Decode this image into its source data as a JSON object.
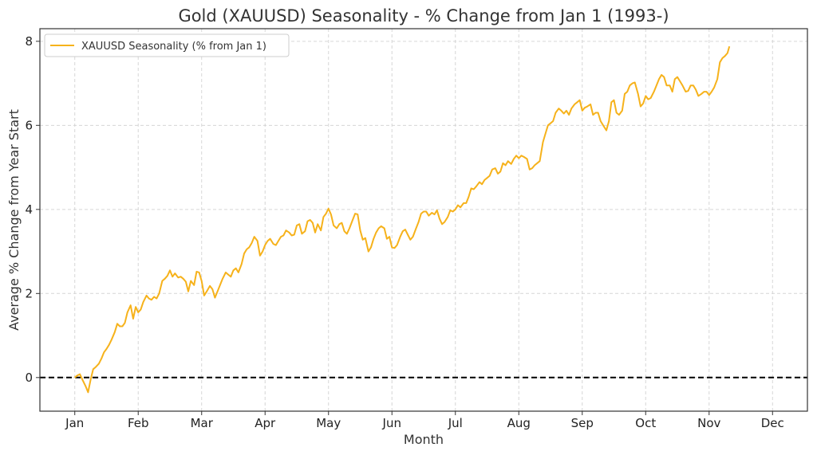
{
  "chart_data": {
    "type": "line",
    "title": "Gold (XAUUSD) Seasonality - % Change from Jan 1 (1993-)",
    "xlabel": "Month",
    "ylabel": "Average % Change from Year Start",
    "x_ticks": [
      "Jan",
      "Feb",
      "Mar",
      "Apr",
      "May",
      "Jun",
      "Jul",
      "Aug",
      "Sep",
      "Oct",
      "Nov",
      "Dec"
    ],
    "xlim": [
      -0.55,
      11.55
    ],
    "ylim": [
      -0.8,
      8.3
    ],
    "y_ticks": [
      0,
      2,
      4,
      6,
      8
    ],
    "grid": true,
    "legend": "top-left",
    "reference_line": {
      "y": 0,
      "style": "dashed",
      "color": "#000000"
    },
    "series": [
      {
        "name": "XAUUSD Seasonality (% from Jan 1)",
        "color": "#F6B21B",
        "points": [
          [
            0.0,
            0.0
          ],
          [
            0.04,
            0.05
          ],
          [
            0.08,
            0.08
          ],
          [
            0.12,
            -0.05
          ],
          [
            0.17,
            -0.2
          ],
          [
            0.21,
            -0.35
          ],
          [
            0.25,
            -0.05
          ],
          [
            0.29,
            0.2
          ],
          [
            0.33,
            0.25
          ],
          [
            0.38,
            0.33
          ],
          [
            0.42,
            0.45
          ],
          [
            0.46,
            0.6
          ],
          [
            0.5,
            0.68
          ],
          [
            0.54,
            0.78
          ],
          [
            0.58,
            0.9
          ],
          [
            0.63,
            1.08
          ],
          [
            0.67,
            1.28
          ],
          [
            0.71,
            1.22
          ],
          [
            0.75,
            1.22
          ],
          [
            0.79,
            1.3
          ],
          [
            0.83,
            1.55
          ],
          [
            0.88,
            1.72
          ],
          [
            0.92,
            1.4
          ],
          [
            0.96,
            1.68
          ],
          [
            1.0,
            1.55
          ],
          [
            1.04,
            1.62
          ],
          [
            1.08,
            1.8
          ],
          [
            1.13,
            1.95
          ],
          [
            1.17,
            1.88
          ],
          [
            1.21,
            1.85
          ],
          [
            1.25,
            1.92
          ],
          [
            1.29,
            1.88
          ],
          [
            1.33,
            2.0
          ],
          [
            1.38,
            2.3
          ],
          [
            1.42,
            2.35
          ],
          [
            1.46,
            2.42
          ],
          [
            1.5,
            2.55
          ],
          [
            1.54,
            2.4
          ],
          [
            1.58,
            2.48
          ],
          [
            1.63,
            2.38
          ],
          [
            1.67,
            2.4
          ],
          [
            1.71,
            2.35
          ],
          [
            1.75,
            2.28
          ],
          [
            1.79,
            2.05
          ],
          [
            1.83,
            2.3
          ],
          [
            1.88,
            2.2
          ],
          [
            1.92,
            2.52
          ],
          [
            1.96,
            2.5
          ],
          [
            2.0,
            2.3
          ],
          [
            2.04,
            1.95
          ],
          [
            2.08,
            2.05
          ],
          [
            2.13,
            2.18
          ],
          [
            2.17,
            2.1
          ],
          [
            2.21,
            1.9
          ],
          [
            2.25,
            2.05
          ],
          [
            2.29,
            2.2
          ],
          [
            2.33,
            2.35
          ],
          [
            2.38,
            2.5
          ],
          [
            2.42,
            2.45
          ],
          [
            2.46,
            2.4
          ],
          [
            2.5,
            2.55
          ],
          [
            2.54,
            2.6
          ],
          [
            2.58,
            2.5
          ],
          [
            2.63,
            2.7
          ],
          [
            2.67,
            2.95
          ],
          [
            2.71,
            3.05
          ],
          [
            2.75,
            3.1
          ],
          [
            2.79,
            3.2
          ],
          [
            2.83,
            3.35
          ],
          [
            2.88,
            3.25
          ],
          [
            2.92,
            2.9
          ],
          [
            2.96,
            3.0
          ],
          [
            3.0,
            3.15
          ],
          [
            3.04,
            3.25
          ],
          [
            3.08,
            3.3
          ],
          [
            3.13,
            3.18
          ],
          [
            3.17,
            3.15
          ],
          [
            3.21,
            3.25
          ],
          [
            3.25,
            3.35
          ],
          [
            3.29,
            3.38
          ],
          [
            3.33,
            3.5
          ],
          [
            3.38,
            3.45
          ],
          [
            3.42,
            3.38
          ],
          [
            3.46,
            3.4
          ],
          [
            3.5,
            3.62
          ],
          [
            3.54,
            3.65
          ],
          [
            3.58,
            3.42
          ],
          [
            3.63,
            3.48
          ],
          [
            3.67,
            3.72
          ],
          [
            3.71,
            3.75
          ],
          [
            3.75,
            3.68
          ],
          [
            3.79,
            3.45
          ],
          [
            3.83,
            3.65
          ],
          [
            3.88,
            3.5
          ],
          [
            3.92,
            3.82
          ],
          [
            3.96,
            3.9
          ],
          [
            4.0,
            4.02
          ],
          [
            4.04,
            3.88
          ],
          [
            4.08,
            3.62
          ],
          [
            4.13,
            3.55
          ],
          [
            4.17,
            3.65
          ],
          [
            4.21,
            3.68
          ],
          [
            4.25,
            3.48
          ],
          [
            4.29,
            3.42
          ],
          [
            4.33,
            3.55
          ],
          [
            4.38,
            3.75
          ],
          [
            4.42,
            3.9
          ],
          [
            4.46,
            3.88
          ],
          [
            4.5,
            3.5
          ],
          [
            4.54,
            3.28
          ],
          [
            4.58,
            3.32
          ],
          [
            4.63,
            3.0
          ],
          [
            4.67,
            3.1
          ],
          [
            4.71,
            3.3
          ],
          [
            4.75,
            3.45
          ],
          [
            4.79,
            3.55
          ],
          [
            4.83,
            3.6
          ],
          [
            4.88,
            3.55
          ],
          [
            4.92,
            3.3
          ],
          [
            4.96,
            3.35
          ],
          [
            5.0,
            3.1
          ],
          [
            5.04,
            3.08
          ],
          [
            5.08,
            3.15
          ],
          [
            5.13,
            3.35
          ],
          [
            5.17,
            3.48
          ],
          [
            5.21,
            3.52
          ],
          [
            5.25,
            3.4
          ],
          [
            5.29,
            3.28
          ],
          [
            5.33,
            3.35
          ],
          [
            5.38,
            3.55
          ],
          [
            5.42,
            3.7
          ],
          [
            5.46,
            3.9
          ],
          [
            5.5,
            3.95
          ],
          [
            5.54,
            3.95
          ],
          [
            5.58,
            3.85
          ],
          [
            5.63,
            3.92
          ],
          [
            5.67,
            3.88
          ],
          [
            5.71,
            3.98
          ],
          [
            5.75,
            3.78
          ],
          [
            5.79,
            3.65
          ],
          [
            5.83,
            3.7
          ],
          [
            5.88,
            3.82
          ],
          [
            5.92,
            3.98
          ],
          [
            5.96,
            3.95
          ],
          [
            6.0,
            4.0
          ],
          [
            6.04,
            4.1
          ],
          [
            6.08,
            4.05
          ],
          [
            6.13,
            4.15
          ],
          [
            6.17,
            4.15
          ],
          [
            6.21,
            4.3
          ],
          [
            6.25,
            4.5
          ],
          [
            6.29,
            4.48
          ],
          [
            6.33,
            4.55
          ],
          [
            6.38,
            4.65
          ],
          [
            6.42,
            4.6
          ],
          [
            6.46,
            4.7
          ],
          [
            6.5,
            4.75
          ],
          [
            6.54,
            4.8
          ],
          [
            6.58,
            4.95
          ],
          [
            6.63,
            4.98
          ],
          [
            6.67,
            4.85
          ],
          [
            6.71,
            4.9
          ],
          [
            6.75,
            5.1
          ],
          [
            6.79,
            5.05
          ],
          [
            6.83,
            5.15
          ],
          [
            6.88,
            5.08
          ],
          [
            6.92,
            5.2
          ],
          [
            6.96,
            5.28
          ],
          [
            7.0,
            5.22
          ],
          [
            7.04,
            5.28
          ],
          [
            7.08,
            5.25
          ],
          [
            7.13,
            5.2
          ],
          [
            7.17,
            4.95
          ],
          [
            7.21,
            4.98
          ],
          [
            7.25,
            5.05
          ],
          [
            7.29,
            5.1
          ],
          [
            7.33,
            5.15
          ],
          [
            7.38,
            5.6
          ],
          [
            7.42,
            5.8
          ],
          [
            7.46,
            6.0
          ],
          [
            7.5,
            6.05
          ],
          [
            7.54,
            6.1
          ],
          [
            7.58,
            6.3
          ],
          [
            7.63,
            6.4
          ],
          [
            7.67,
            6.35
          ],
          [
            7.71,
            6.28
          ],
          [
            7.75,
            6.35
          ],
          [
            7.79,
            6.25
          ],
          [
            7.83,
            6.4
          ],
          [
            7.88,
            6.5
          ],
          [
            7.92,
            6.55
          ],
          [
            7.96,
            6.6
          ],
          [
            8.0,
            6.35
          ],
          [
            8.04,
            6.42
          ],
          [
            8.08,
            6.45
          ],
          [
            8.13,
            6.5
          ],
          [
            8.17,
            6.25
          ],
          [
            8.21,
            6.3
          ],
          [
            8.25,
            6.3
          ],
          [
            8.29,
            6.1
          ],
          [
            8.33,
            6.0
          ],
          [
            8.38,
            5.88
          ],
          [
            8.42,
            6.1
          ],
          [
            8.46,
            6.55
          ],
          [
            8.5,
            6.6
          ],
          [
            8.54,
            6.3
          ],
          [
            8.58,
            6.25
          ],
          [
            8.63,
            6.35
          ],
          [
            8.67,
            6.75
          ],
          [
            8.71,
            6.8
          ],
          [
            8.75,
            6.95
          ],
          [
            8.79,
            7.0
          ],
          [
            8.83,
            7.02
          ],
          [
            8.88,
            6.75
          ],
          [
            8.92,
            6.45
          ],
          [
            8.96,
            6.52
          ],
          [
            9.0,
            6.7
          ],
          [
            9.04,
            6.62
          ],
          [
            9.08,
            6.65
          ],
          [
            9.13,
            6.8
          ],
          [
            9.17,
            6.95
          ],
          [
            9.21,
            7.1
          ],
          [
            9.25,
            7.2
          ],
          [
            9.29,
            7.15
          ],
          [
            9.33,
            6.95
          ],
          [
            9.38,
            6.95
          ],
          [
            9.42,
            6.8
          ],
          [
            9.46,
            7.1
          ],
          [
            9.5,
            7.15
          ],
          [
            9.54,
            7.05
          ],
          [
            9.58,
            6.95
          ],
          [
            9.63,
            6.8
          ],
          [
            9.67,
            6.82
          ],
          [
            9.71,
            6.95
          ],
          [
            9.75,
            6.95
          ],
          [
            9.79,
            6.85
          ],
          [
            9.83,
            6.7
          ],
          [
            9.88,
            6.75
          ],
          [
            9.92,
            6.8
          ],
          [
            9.96,
            6.8
          ],
          [
            10.0,
            6.72
          ],
          [
            10.04,
            6.8
          ],
          [
            10.08,
            6.9
          ],
          [
            10.13,
            7.1
          ],
          [
            10.17,
            7.5
          ],
          [
            10.21,
            7.6
          ],
          [
            10.25,
            7.65
          ],
          [
            10.29,
            7.72
          ],
          [
            10.32,
            7.88
          ]
        ]
      }
    ]
  }
}
